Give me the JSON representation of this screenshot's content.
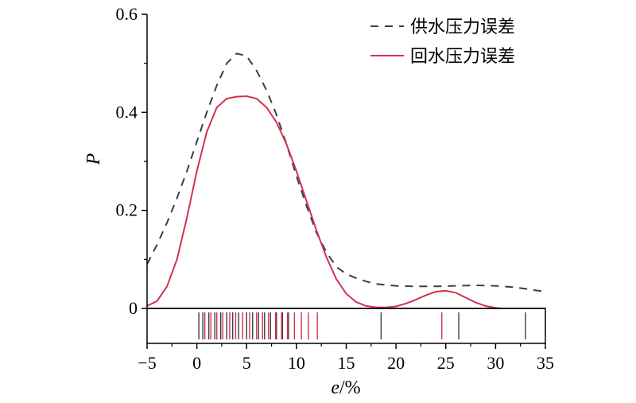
{
  "chart_data": {
    "type": "line",
    "title": "",
    "xlabel_var": "e",
    "xlabel_unit": "/%",
    "ylabel": "P",
    "xlim": [
      -5,
      35
    ],
    "ylim": [
      0,
      0.6
    ],
    "x_ticks": [
      -5,
      0,
      5,
      10,
      15,
      20,
      25,
      30,
      35
    ],
    "x_tick_labels": [
      "−5",
      "0",
      "5",
      "10",
      "15",
      "20",
      "25",
      "30",
      "35"
    ],
    "y_ticks": [
      0,
      0.2,
      0.4,
      0.6
    ],
    "y_tick_labels": [
      "0",
      "0.2",
      "0.4",
      "0.6"
    ],
    "grid": false,
    "legend_position": "top-right",
    "series": [
      {
        "name": "供水压力误差",
        "color": "#3a3f45",
        "style": "dashed",
        "x": [
          -5,
          -4,
          -3,
          -2,
          -1,
          0,
          1,
          2,
          3,
          4,
          5,
          6,
          7,
          8,
          9,
          10,
          11,
          12,
          13,
          14,
          15,
          16,
          17,
          18,
          19,
          20,
          22,
          24,
          26,
          28,
          30,
          32,
          34,
          35
        ],
        "y": [
          0.09,
          0.13,
          0.175,
          0.225,
          0.28,
          0.34,
          0.4,
          0.455,
          0.5,
          0.52,
          0.515,
          0.485,
          0.445,
          0.395,
          0.335,
          0.27,
          0.21,
          0.155,
          0.115,
          0.085,
          0.07,
          0.062,
          0.055,
          0.05,
          0.048,
          0.046,
          0.045,
          0.045,
          0.046,
          0.047,
          0.046,
          0.043,
          0.037,
          0.034
        ]
      },
      {
        "name": "回水压力误差",
        "color": "#d6304f",
        "style": "solid",
        "x": [
          -5,
          -4,
          -3,
          -2,
          -1,
          0,
          1,
          2,
          3,
          4,
          5,
          6,
          7,
          8,
          9,
          10,
          11,
          12,
          13,
          14,
          15,
          16,
          17,
          18,
          19,
          20,
          21,
          22,
          23,
          24,
          25,
          26,
          27,
          28,
          29,
          30,
          30.5
        ],
        "y": [
          0.005,
          0.015,
          0.045,
          0.1,
          0.185,
          0.28,
          0.36,
          0.41,
          0.428,
          0.432,
          0.433,
          0.428,
          0.41,
          0.38,
          0.335,
          0.28,
          0.22,
          0.16,
          0.105,
          0.06,
          0.03,
          0.013,
          0.005,
          0.002,
          0.002,
          0.004,
          0.01,
          0.018,
          0.027,
          0.034,
          0.036,
          0.032,
          0.022,
          0.012,
          0.005,
          0.001,
          0
        ]
      }
    ],
    "rug": [
      {
        "series": "供水压力误差",
        "x": [
          0.2,
          0.6,
          1.2,
          1.8,
          2.4,
          3.0,
          3.6,
          4.2,
          5.0,
          5.6,
          6.2,
          6.8,
          7.4,
          8.0,
          8.6,
          9.2,
          18.5,
          26.3,
          33.0
        ]
      },
      {
        "series": "回水压力误差",
        "x": [
          0.8,
          1.4,
          2.0,
          2.6,
          3.3,
          3.9,
          4.6,
          5.3,
          6.0,
          6.6,
          7.2,
          7.9,
          8.5,
          9.1,
          9.8,
          10.5,
          11.2,
          12.1,
          24.6
        ]
      }
    ]
  }
}
